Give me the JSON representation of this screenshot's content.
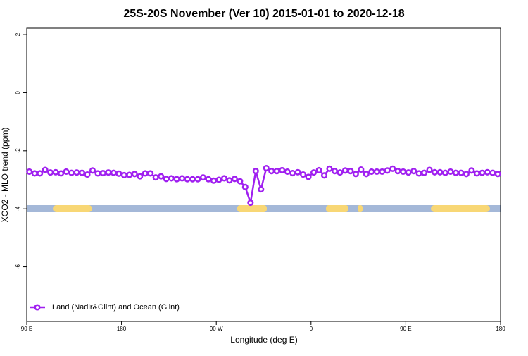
{
  "chart_data": {
    "type": "line",
    "title": "25S-20S November (Ver 10)   2015-01-01 to 2020-12-18",
    "x_label": "Longitude (deg E)",
    "y_label": "XCO2 - MLO trend (ppm)",
    "xlim": [
      90,
      540
    ],
    "xticks": [
      {
        "value": 90,
        "label": "90 E"
      },
      180,
      {
        "value": 270,
        "label": "90 W"
      },
      {
        "value": 360,
        "label": "0"
      },
      {
        "value": 450,
        "label": "90 E"
      },
      {
        "value": 540,
        "label": "180"
      }
    ],
    "ylim": [
      -7.88,
      2.22
    ],
    "yticks": [
      2,
      0,
      -2,
      -4,
      -6
    ],
    "legend": "bottomleft",
    "x": [
      92.5,
      97.5,
      102.5,
      107.5,
      112.5,
      117.5,
      122.5,
      127.5,
      132.5,
      137.5,
      142.5,
      147.5,
      152.5,
      157.5,
      162.5,
      167.5,
      172.5,
      177.5,
      182.5,
      187.5,
      192.5,
      197.5,
      202.5,
      207.5,
      212.5,
      217.5,
      222.5,
      227.5,
      232.5,
      237.5,
      242.5,
      247.5,
      252.5,
      257.5,
      262.5,
      267.5,
      272.5,
      277.5,
      282.5,
      287.5,
      292.5,
      297.5,
      302.5,
      307.5,
      312.5,
      317.5,
      322.5,
      327.5,
      332.5,
      337.5,
      342.5,
      347.5,
      352.5,
      357.5,
      362.5,
      367.5,
      372.5,
      377.5,
      382.5,
      387.5,
      392.5,
      397.5,
      402.5,
      407.5,
      412.5,
      417.5,
      422.5,
      427.5,
      432.5,
      437.5,
      442.5,
      447.5,
      452.5,
      457.5,
      462.5,
      467.5,
      472.5,
      477.5,
      482.5,
      487.5,
      492.5,
      497.5,
      502.5,
      507.5,
      512.5,
      517.5,
      522.5,
      527.5,
      532.5,
      537.5
    ],
    "series": [
      {
        "name": "Land (Nadir&Glint) and Ocean (Glint)",
        "color": "#a020f0",
        "values": [
          -2.72,
          -2.78,
          -2.78,
          -2.66,
          -2.75,
          -2.74,
          -2.78,
          -2.72,
          -2.76,
          -2.75,
          -2.76,
          -2.82,
          -2.68,
          -2.78,
          -2.77,
          -2.75,
          -2.76,
          -2.79,
          -2.84,
          -2.83,
          -2.8,
          -2.88,
          -2.78,
          -2.78,
          -2.92,
          -2.88,
          -2.97,
          -2.95,
          -2.98,
          -2.95,
          -2.98,
          -2.98,
          -2.98,
          -2.92,
          -2.98,
          -3.03,
          -3.0,
          -2.95,
          -3.02,
          -2.97,
          -3.05,
          -3.25,
          -3.79,
          -2.7,
          -3.33,
          -2.6,
          -2.7,
          -2.7,
          -2.67,
          -2.72,
          -2.77,
          -2.74,
          -2.82,
          -2.9,
          -2.75,
          -2.67,
          -2.85,
          -2.62,
          -2.7,
          -2.75,
          -2.68,
          -2.7,
          -2.8,
          -2.65,
          -2.8,
          -2.72,
          -2.72,
          -2.72,
          -2.68,
          -2.62,
          -2.7,
          -2.72,
          -2.75,
          -2.7,
          -2.78,
          -2.76,
          -2.66,
          -2.74,
          -2.74,
          -2.76,
          -2.72,
          -2.76,
          -2.76,
          -2.8,
          -2.68,
          -2.78,
          -2.76,
          -2.74,
          -2.76,
          -2.8
        ]
      }
    ]
  }
}
